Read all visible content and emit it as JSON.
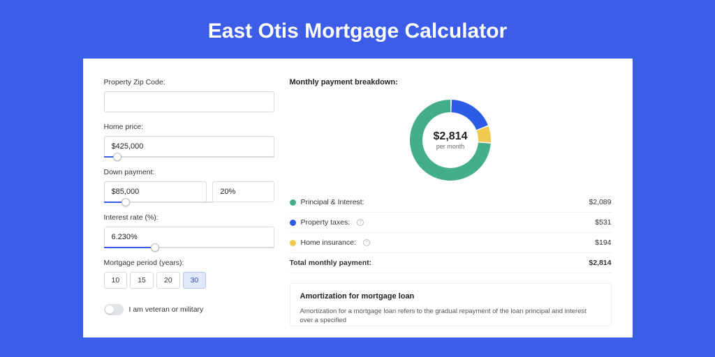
{
  "page": {
    "title": "East Otis Mortgage Calculator",
    "background_color": "#3b5de7"
  },
  "form": {
    "zip": {
      "label": "Property Zip Code:",
      "value": ""
    },
    "home_price": {
      "label": "Home price:",
      "value": "$425,000",
      "slider_pct": 8
    },
    "down_payment": {
      "label": "Down payment:",
      "amount": "$85,000",
      "percent": "20%",
      "slider_pct": 20
    },
    "interest": {
      "label": "Interest rate (%):",
      "value": "6.230%",
      "slider_pct": 30
    },
    "period": {
      "label": "Mortgage period (years):",
      "options": [
        "10",
        "15",
        "20",
        "30"
      ],
      "selected_index": 3
    },
    "veteran": {
      "label": "I am veteran or military",
      "checked": false
    }
  },
  "breakdown": {
    "title": "Monthly payment breakdown:",
    "center_amount": "$2,814",
    "center_sub": "per month",
    "items": [
      {
        "label": "Principal & Interest:",
        "amount": "$2,089",
        "color": "#44ad8c",
        "help": false
      },
      {
        "label": "Property taxes:",
        "amount": "$531",
        "color": "#2c5ce6",
        "help": true
      },
      {
        "label": "Home insurance:",
        "amount": "$194",
        "color": "#f1c94e",
        "help": true
      }
    ],
    "total": {
      "label": "Total monthly payment:",
      "amount": "$2,814"
    },
    "donut": {
      "slices": [
        {
          "color": "#f1c94e",
          "fraction": 0.069
        },
        {
          "color": "#44ad8c",
          "fraction": 0.742
        },
        {
          "color": "#2c5ce6",
          "fraction": 0.189
        }
      ],
      "start_angle": -20,
      "thickness": 18,
      "size": 122
    }
  },
  "amortization": {
    "title": "Amortization for mortgage loan",
    "text": "Amortization for a mortgage loan refers to the gradual repayment of the loan principal and interest over a specified"
  }
}
